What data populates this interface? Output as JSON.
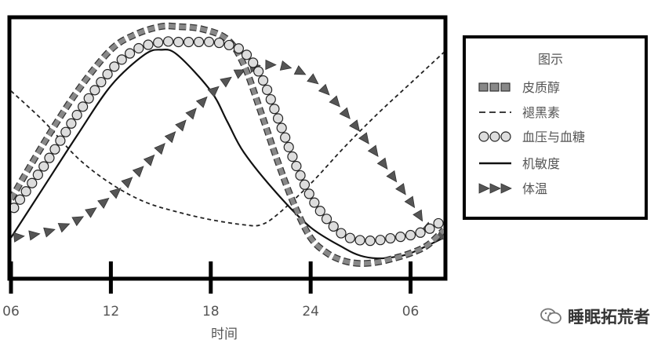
{
  "chart_data": {
    "type": "line",
    "title": "",
    "xlabel": "时间",
    "ylabel": "",
    "x_ticks": [
      "06",
      "12",
      "18",
      "24",
      "06"
    ],
    "xlim": [
      6,
      32
    ],
    "ylim": [
      0,
      100
    ],
    "grid": false,
    "legend": {
      "title": "图示",
      "placement": "right"
    },
    "series": [
      {
        "name": "皮质醇",
        "style": "dashed-square",
        "color": "#888888",
        "x": [
          6,
          8,
          10,
          12,
          13.5,
          15,
          16,
          17.5,
          19,
          20,
          21,
          22,
          23,
          24,
          25,
          26,
          27,
          28,
          29,
          30,
          31,
          32
        ],
        "y": [
          30,
          52,
          72,
          88,
          94,
          97,
          97,
          96,
          92,
          82,
          64,
          45,
          28,
          15,
          9,
          6,
          5,
          5.5,
          7,
          9,
          12,
          18
        ]
      },
      {
        "name": "褪黑素",
        "style": "dashed",
        "color": "#222222",
        "x": [
          6,
          8,
          10,
          12,
          14,
          16,
          18,
          20,
          21,
          22,
          24,
          26,
          28,
          30,
          32
        ],
        "y": [
          72,
          60,
          46,
          36,
          29,
          25,
          22,
          20,
          20,
          24,
          36,
          50,
          63,
          75,
          87
        ]
      },
      {
        "name": "血压与血糖",
        "style": "circle",
        "color": "#dddddd",
        "x": [
          6,
          8,
          10,
          12,
          13.5,
          15,
          16,
          17,
          18,
          19,
          20,
          21,
          22,
          23,
          24,
          25,
          26,
          27,
          28,
          29,
          30,
          31,
          32
        ],
        "y": [
          25,
          43,
          63,
          80,
          88,
          91,
          91,
          91,
          91,
          90,
          87,
          78,
          62,
          45,
          31,
          22,
          16,
          14,
          14,
          15,
          16,
          18,
          22
        ]
      },
      {
        "name": "机敏度",
        "style": "solid",
        "color": "#111111",
        "x": [
          6,
          8,
          10,
          12,
          14,
          15,
          16,
          18,
          19,
          20,
          22,
          24,
          26,
          27,
          28,
          29,
          30,
          32
        ],
        "y": [
          15,
          35,
          55,
          74,
          86,
          88,
          86,
          72,
          60,
          48,
          32,
          19,
          11,
          8,
          7,
          7.5,
          9,
          15
        ]
      },
      {
        "name": "体温",
        "style": "triangle",
        "color": "#555555",
        "x": [
          6,
          8,
          10,
          12,
          14,
          16,
          18,
          20,
          22,
          24,
          26,
          28,
          30,
          31,
          32
        ],
        "y": [
          15,
          17,
          22,
          31,
          43,
          57,
          71,
          80,
          82,
          77,
          64,
          47,
          29,
          19,
          15
        ]
      }
    ]
  },
  "watermark": {
    "text": "睡眠拓荒者"
  }
}
